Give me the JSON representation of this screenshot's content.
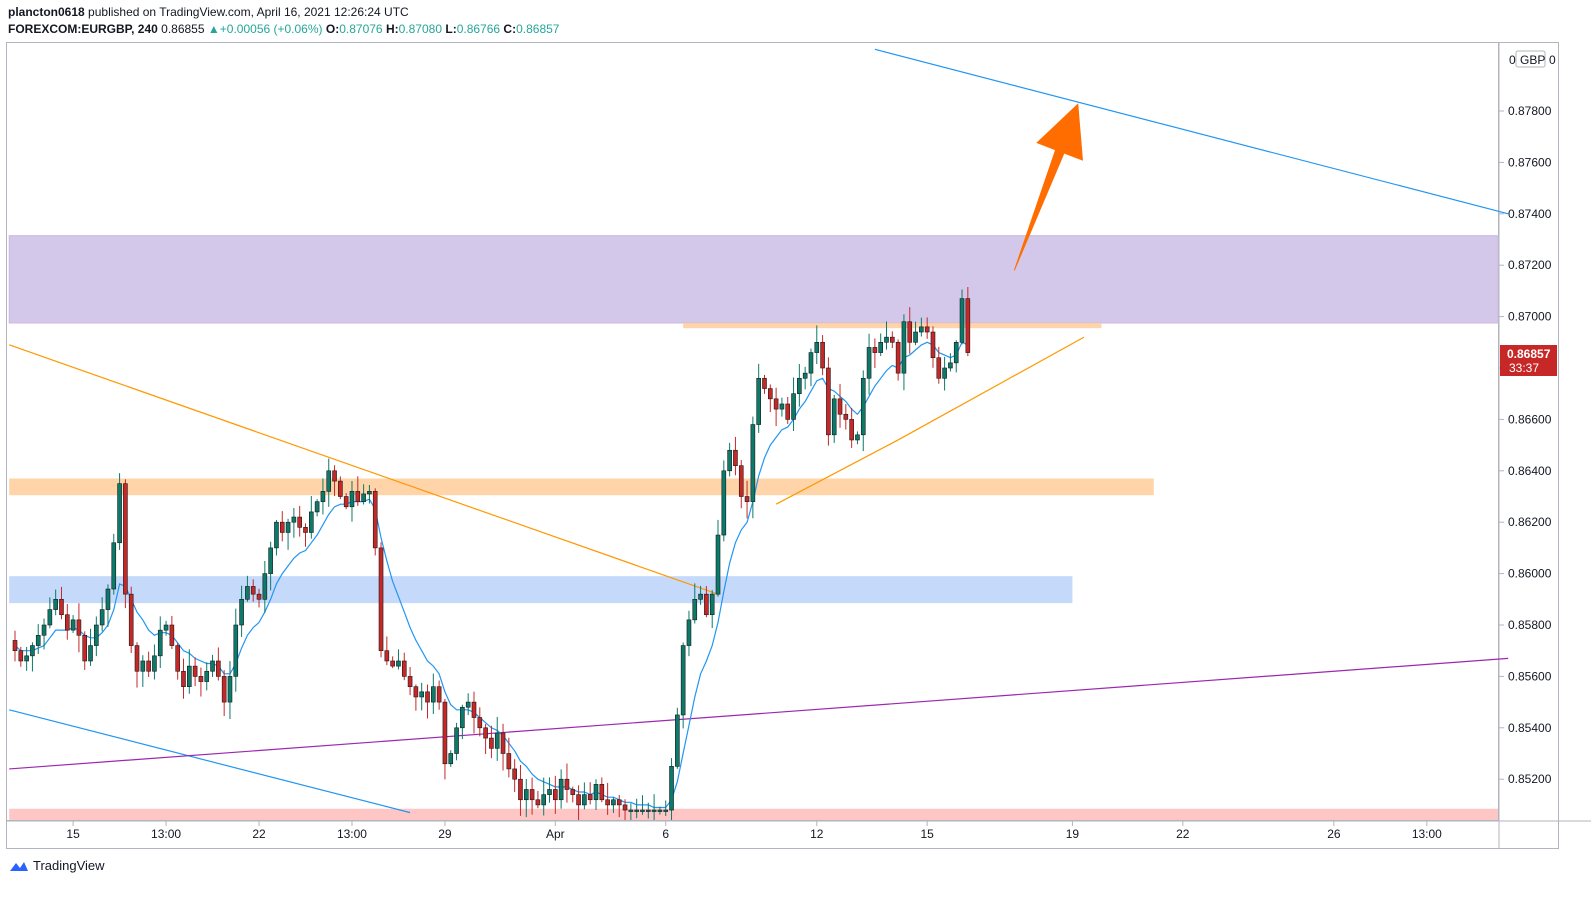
{
  "header": {
    "author": "plancton0618",
    "published": "published on TradingView.com, April 16, 2021 12:26:24 UTC",
    "symbol": "FOREXCOM:EURGBP, 240",
    "last": "0.86855",
    "change": "+0.00056 (+0.06%)",
    "open_label": "O:",
    "open": "0.87076",
    "high_label": "H:",
    "high": "0.87080",
    "low_label": "L:",
    "low": "0.86766",
    "close_label": "C:",
    "close": "0.86857"
  },
  "price_axis": {
    "currency": "GBP",
    "top_label": "0",
    "top_label_right": "0",
    "current_price": "0.86857",
    "countdown": "33:37"
  },
  "brand": {
    "name": "TradingView"
  },
  "colors": {
    "up": "#26a69a",
    "down": "#ef5350",
    "candle_up": "#0b7a6a",
    "candle_down": "#c62828",
    "ema": "#2196f3",
    "resistance_zone": "#d1c4e9",
    "support_orange": "#ffcc99",
    "support_blue": "#bbd2fa",
    "bottom_zone": "#ffbcbc",
    "trend_orange": "#ff9800",
    "channel_blue": "#2196f3",
    "trend_purple": "#9c27b0",
    "arrow": "#ff6d00"
  },
  "chart_data": {
    "type": "candlestick",
    "title": "FOREXCOM:EURGBP, 240",
    "timeframe": "240",
    "ylabel": "GBP",
    "ylim": [
      0.8506,
      0.8804
    ],
    "y_ticks": [
      0.852,
      0.854,
      0.856,
      0.858,
      0.86,
      0.862,
      0.864,
      0.866,
      0.868,
      0.87,
      0.872,
      0.874,
      0.876,
      0.878
    ],
    "y_tick_labels": [
      "0.85200",
      "0.85400",
      "0.85600",
      "0.85800",
      "0.86000",
      "0.86200",
      "0.86400",
      "0.86600",
      "0.86800",
      "0.87000",
      "0.87200",
      "0.87400",
      "0.87600",
      "0.87800"
    ],
    "x_ticks": [
      {
        "label": "15",
        "bar": 10
      },
      {
        "label": "13:00",
        "bar": 26
      },
      {
        "label": "22",
        "bar": 42
      },
      {
        "label": "13:00",
        "bar": 58
      },
      {
        "label": "29",
        "bar": 74
      },
      {
        "label": "Apr",
        "bar": 93
      },
      {
        "label": "6",
        "bar": 112
      },
      {
        "label": "12",
        "bar": 138
      },
      {
        "label": "15",
        "bar": 157
      },
      {
        "label": "19",
        "bar": 182
      },
      {
        "label": "22",
        "bar": 201
      },
      {
        "label": "26",
        "bar": 227
      },
      {
        "label": "13:00",
        "bar": 243
      }
    ],
    "close_path": [
      0.857,
      0.8566,
      0.8568,
      0.8572,
      0.8576,
      0.858,
      0.8586,
      0.859,
      0.8584,
      0.8578,
      0.8582,
      0.8576,
      0.8566,
      0.8572,
      0.858,
      0.8586,
      0.8594,
      0.8612,
      0.8635,
      0.8592,
      0.8572,
      0.8562,
      0.8566,
      0.8562,
      0.8568,
      0.8578,
      0.858,
      0.8572,
      0.8562,
      0.8556,
      0.8564,
      0.856,
      0.8558,
      0.8562,
      0.8566,
      0.856,
      0.855,
      0.856,
      0.858,
      0.859,
      0.8595,
      0.8592,
      0.859,
      0.86,
      0.861,
      0.862,
      0.8616,
      0.862,
      0.8622,
      0.8618,
      0.8616,
      0.8624,
      0.8628,
      0.8632,
      0.864,
      0.8636,
      0.863,
      0.8626,
      0.8632,
      0.8628,
      0.8631,
      0.8632,
      0.861,
      0.857,
      0.8566,
      0.8564,
      0.8566,
      0.856,
      0.8556,
      0.8552,
      0.8554,
      0.855,
      0.8556,
      0.855,
      0.8526,
      0.853,
      0.854,
      0.8548,
      0.855,
      0.8544,
      0.854,
      0.8536,
      0.8532,
      0.8538,
      0.853,
      0.8524,
      0.852,
      0.8512,
      0.8516,
      0.8512,
      0.851,
      0.8514,
      0.8516,
      0.8512,
      0.852,
      0.8516,
      0.8514,
      0.851,
      0.8514,
      0.8512,
      0.8518,
      0.8512,
      0.851,
      0.8512,
      0.851,
      0.8508,
      0.8508,
      0.8508,
      0.8508,
      0.8508,
      0.8508,
      0.8508,
      0.8508,
      0.8525,
      0.8545,
      0.8572,
      0.8582,
      0.859,
      0.8592,
      0.8584,
      0.8592,
      0.8615,
      0.864,
      0.8648,
      0.8642,
      0.863,
      0.8628,
      0.8658,
      0.8676,
      0.8672,
      0.8668,
      0.8664,
      0.8666,
      0.866,
      0.867,
      0.8676,
      0.8678,
      0.8686,
      0.869,
      0.868,
      0.8654,
      0.8668,
      0.8662,
      0.866,
      0.8652,
      0.8654,
      0.8676,
      0.8688,
      0.8686,
      0.869,
      0.8692,
      0.869,
      0.8678,
      0.8698,
      0.869,
      0.8694,
      0.8696,
      0.8694,
      0.8684,
      0.8676,
      0.868,
      0.8682,
      0.869,
      0.8707,
      0.8686
    ],
    "ema_path": [
      0.8572,
      0.857,
      0.857,
      0.857,
      0.8571,
      0.8572,
      0.8575,
      0.8578,
      0.8578,
      0.8578,
      0.8579,
      0.8578,
      0.8576,
      0.8575,
      0.8575,
      0.8577,
      0.858,
      0.8586,
      0.8596,
      0.8595,
      0.859,
      0.8585,
      0.8582,
      0.8578,
      0.8576,
      0.8577,
      0.8577,
      0.8576,
      0.8573,
      0.857,
      0.8569,
      0.8567,
      0.8566,
      0.8565,
      0.8565,
      0.8564,
      0.8561,
      0.8561,
      0.8565,
      0.8571,
      0.8576,
      0.8579,
      0.8581,
      0.8585,
      0.859,
      0.8596,
      0.86,
      0.8603,
      0.8606,
      0.8608,
      0.8609,
      0.8612,
      0.8615,
      0.8619,
      0.8623,
      0.8626,
      0.8627,
      0.8627,
      0.8628,
      0.8628,
      0.8628,
      0.8629,
      0.8625,
      0.8614,
      0.8605,
      0.8597,
      0.8591,
      0.8585,
      0.8579,
      0.8574,
      0.857,
      0.8566,
      0.8564,
      0.8561,
      0.8554,
      0.8549,
      0.8547,
      0.8547,
      0.8547,
      0.8546,
      0.8544,
      0.8542,
      0.854,
      0.8539,
      0.8537,
      0.8534,
      0.8531,
      0.8527,
      0.8525,
      0.8522,
      0.852,
      0.8519,
      0.8518,
      0.8517,
      0.8517,
      0.8517,
      0.8516,
      0.8515,
      0.8515,
      0.8514,
      0.8515,
      0.8514,
      0.8513,
      0.8513,
      0.8512,
      0.8511,
      0.8511,
      0.851,
      0.851,
      0.851,
      0.8509,
      0.8509,
      0.8509,
      0.8512,
      0.8519,
      0.853,
      0.8541,
      0.8552,
      0.8561,
      0.8566,
      0.8572,
      0.8581,
      0.8593,
      0.8604,
      0.8612,
      0.8617,
      0.862,
      0.8628,
      0.8638,
      0.8645,
      0.865,
      0.8653,
      0.8656,
      0.8657,
      0.866,
      0.8664,
      0.8667,
      0.8671,
      0.8675,
      0.8676,
      0.8672,
      0.8671,
      0.8669,
      0.8667,
      0.8664,
      0.8662,
      0.8665,
      0.8669,
      0.8673,
      0.8676,
      0.8679,
      0.8681,
      0.868,
      0.8684,
      0.8685,
      0.8687,
      0.8689,
      0.869,
      0.8689,
      0.8686,
      0.8685,
      0.8684,
      0.8685,
      0.869,
      0.8689
    ],
    "zones": [
      {
        "name": "resistance-zone",
        "y1": 0.86975,
        "y2": 0.87315,
        "bar_start": -1,
        "bar_end": 257
      },
      {
        "name": "support-zone-orange-high",
        "y1": 0.86955,
        "y2": 0.86975,
        "bar_start": 115,
        "bar_end": 187
      },
      {
        "name": "support-zone-orange-mid",
        "y1": 0.86305,
        "y2": 0.8637,
        "bar_start": -1,
        "bar_end": 196
      },
      {
        "name": "support-zone-blue",
        "y1": 0.85885,
        "y2": 0.8599,
        "bar_start": -1,
        "bar_end": 182
      },
      {
        "name": "bottom-zone-red",
        "y1": 0.8504,
        "y2": 0.85085,
        "bar_start": -1,
        "bar_end": 257
      }
    ],
    "trendlines": [
      {
        "name": "upper-channel-line",
        "color": "channel_blue",
        "bar1": 148,
        "p1": 0.8804,
        "bar2": 257,
        "p2": 0.874
      },
      {
        "name": "lower-channel-line",
        "color": "channel_blue",
        "bar1": -1,
        "p1": 0.8547,
        "bar2": 68,
        "p2": 0.8507
      },
      {
        "name": "descending-trendline",
        "color": "trend_orange",
        "bar1": -1,
        "p1": 0.8689,
        "bar2": 121,
        "p2": 0.8592
      },
      {
        "name": "ascending-trendline-1",
        "color": "trend_orange",
        "bar1": 131,
        "p1": 0.8627,
        "bar2": 152,
        "p2": 0.8652
      },
      {
        "name": "ascending-trendline-2",
        "color": "trend_orange",
        "bar1": 152,
        "p1": 0.8652,
        "bar2": 184,
        "p2": 0.8692
      },
      {
        "name": "rising-purple-line",
        "color": "trend_purple",
        "bar1": -1,
        "p1": 0.8524,
        "bar2": 257,
        "p2": 0.8567
      }
    ],
    "projection_arrow": {
      "from_bar": 172,
      "from_price": 0.8718,
      "to_bar": 183,
      "to_price": 0.8783
    }
  }
}
